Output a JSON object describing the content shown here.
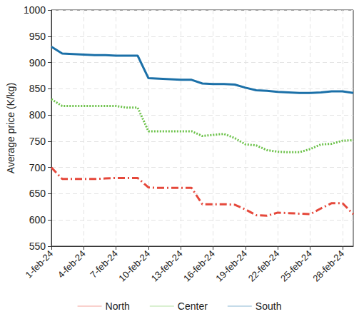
{
  "chart_data": {
    "type": "line",
    "y_label": "Average price (K/kg)",
    "categories": [
      "1-feb-24",
      null,
      null,
      "4-feb-24",
      null,
      null,
      "7-feb-24",
      null,
      null,
      "10-feb-24",
      null,
      null,
      "13-feb-24",
      null,
      null,
      "16-feb-24",
      null,
      null,
      "19-feb-24",
      null,
      null,
      "22-feb-24",
      null,
      null,
      "25-feb-24",
      null,
      null,
      "28-feb-24",
      null
    ],
    "series": [
      {
        "name": "North",
        "color": "#e5483b",
        "line_style": "dashdot",
        "values": [
          700,
          678,
          678,
          678,
          678,
          679,
          680,
          680,
          680,
          662,
          661,
          661,
          661,
          661,
          630,
          630,
          630,
          629,
          620,
          609,
          608,
          614,
          613,
          612,
          611,
          622,
          632,
          632,
          611
        ]
      },
      {
        "name": "Center",
        "color": "#6cc24a",
        "line_style": "dotted",
        "values": [
          830,
          817,
          817,
          817,
          817,
          817,
          817,
          814,
          814,
          769,
          769,
          769,
          769,
          769,
          760,
          762,
          764,
          756,
          744,
          742,
          733,
          730,
          729,
          729,
          735,
          744,
          745,
          751,
          752
        ]
      },
      {
        "name": "South",
        "color": "#1b70a8",
        "line_style": "solid",
        "values": [
          930,
          917,
          916,
          915,
          914,
          914,
          913,
          913,
          913,
          870,
          869,
          868,
          867,
          867,
          860,
          859,
          859,
          858,
          852,
          847,
          846,
          844,
          843,
          842,
          842,
          843,
          845,
          845,
          842
        ]
      }
    ],
    "ylim": [
      550,
      1000
    ],
    "yticks": [
      550,
      600,
      650,
      700,
      750,
      800,
      850,
      900,
      950,
      1000
    ],
    "grid": true,
    "legend": "bottom"
  }
}
